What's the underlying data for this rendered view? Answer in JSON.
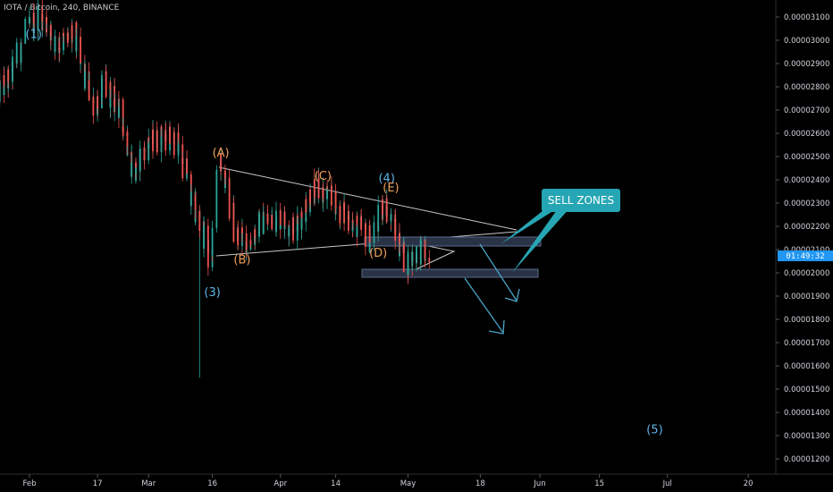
{
  "header": {
    "symbol_line": "IOTA / Bitcoin, 240, BINANCE"
  },
  "price_tag": {
    "time_remaining": "01:49:32",
    "color": "#2196f3"
  },
  "colors": {
    "background": "#000000",
    "candle_up": "#26a69a",
    "candle_down": "#ef5350",
    "wave_orange": "#f0a05a",
    "wave_blue": "#5fb3e8",
    "trendline": "#c8c8c8",
    "zone_fill": "#2a3346",
    "zone_border": "#5a6b8c",
    "callout": "#26a6b4",
    "arrow": "#4aa3c8"
  },
  "chart_data": {
    "type": "candlestick",
    "title": "IOTA / Bitcoin, 240, BINANCE",
    "y_axis": {
      "ticks": [
        "0.00003100",
        "0.00003000",
        "0.00002900",
        "0.00002800",
        "0.00002700",
        "0.00002600",
        "0.00002500",
        "0.00002400",
        "0.00002300",
        "0.00002200",
        "0.00002100",
        "0.00002000",
        "0.00001900",
        "0.00001800",
        "0.00001700",
        "0.00001600",
        "0.00001500",
        "0.00001400",
        "0.00001300",
        "0.00001200"
      ],
      "range": [
        1.18e-05,
        3.12e-05
      ]
    },
    "x_axis": {
      "ticks": [
        {
          "label": "Feb",
          "date": "2019-02-01"
        },
        {
          "label": "17",
          "date": "2019-02-17"
        },
        {
          "label": "Mar",
          "date": "2019-03-01"
        },
        {
          "label": "16",
          "date": "2019-03-16"
        },
        {
          "label": "Apr",
          "date": "2019-04-01"
        },
        {
          "label": "14",
          "date": "2019-04-14"
        },
        {
          "label": "May",
          "date": "2019-05-01"
        },
        {
          "label": "18",
          "date": "2019-05-18"
        },
        {
          "label": "Jun",
          "date": "2019-06-01"
        },
        {
          "label": "15",
          "date": "2019-06-15"
        },
        {
          "label": "Jul",
          "date": "2019-07-01"
        },
        {
          "label": "20",
          "date": "2019-07-20"
        }
      ]
    },
    "price_path": [
      [
        "2019-01-25",
        2.76e-05
      ],
      [
        "2019-01-28",
        2.85e-05
      ],
      [
        "2019-02-01",
        3.05e-05
      ],
      [
        "2019-02-04",
        3.11e-05
      ],
      [
        "2019-02-08",
        2.98e-05
      ],
      [
        "2019-02-12",
        3.02e-05
      ],
      [
        "2019-02-14",
        2.85e-05
      ],
      [
        "2019-02-17",
        2.72e-05
      ],
      [
        "2019-02-19",
        2.81e-05
      ],
      [
        "2019-02-23",
        2.68e-05
      ],
      [
        "2019-02-26",
        2.43e-05
      ],
      [
        "2019-03-01",
        2.55e-05
      ],
      [
        "2019-03-05",
        2.59e-05
      ],
      [
        "2019-03-08",
        2.56e-05
      ],
      [
        "2019-03-10",
        2.45e-05
      ],
      [
        "2019-03-12",
        2.28e-05
      ],
      [
        "2019-03-14",
        2.2e-05
      ],
      [
        "2019-03-16",
        2.05e-05
      ],
      [
        "2019-03-18",
        2.48e-05
      ],
      [
        "2019-03-20",
        2.35e-05
      ],
      [
        "2019-03-22",
        2.16e-05
      ],
      [
        "2019-03-25",
        2.13e-05
      ],
      [
        "2019-03-28",
        2.22e-05
      ],
      [
        "2019-04-01",
        2.24e-05
      ],
      [
        "2019-04-05",
        2.19e-05
      ],
      [
        "2019-04-09",
        2.36e-05
      ],
      [
        "2019-04-12",
        2.34e-05
      ],
      [
        "2019-04-15",
        2.28e-05
      ],
      [
        "2019-04-19",
        2.21e-05
      ],
      [
        "2019-04-23",
        2.14e-05
      ],
      [
        "2019-04-26",
        2.31e-05
      ],
      [
        "2019-04-29",
        2.15e-05
      ],
      [
        "2019-05-01",
        2.04e-05
      ],
      [
        "2019-05-04",
        2.1e-05
      ],
      [
        "2019-05-06",
        2.07e-05
      ]
    ],
    "wick_low": {
      "date": "2019-03-13",
      "price": 1.55e-05
    },
    "current_price": 2.08e-05,
    "annotations": {
      "wave_labels": [
        {
          "text": "(1)",
          "date": "2019-02-02",
          "price": 3.01e-05,
          "color": "blue"
        },
        {
          "text": "(3)",
          "date": "2019-03-16",
          "price": 1.9e-05,
          "color": "blue"
        },
        {
          "text": "(4)",
          "date": "2019-04-26",
          "price": 2.39e-05,
          "color": "blue"
        },
        {
          "text": "(5)",
          "date": "2019-06-28",
          "price": 1.31e-05,
          "color": "blue"
        },
        {
          "text": "(A)",
          "date": "2019-03-18",
          "price": 2.5e-05,
          "color": "orange"
        },
        {
          "text": "(B)",
          "date": "2019-03-23",
          "price": 2.04e-05,
          "color": "orange"
        },
        {
          "text": "(C)",
          "date": "2019-04-11",
          "price": 2.4e-05,
          "color": "orange"
        },
        {
          "text": "(D)",
          "date": "2019-04-24",
          "price": 2.07e-05,
          "color": "orange"
        },
        {
          "text": "(E)",
          "date": "2019-04-27",
          "price": 2.35e-05,
          "color": "orange"
        }
      ],
      "callout": "SELL ZONES"
    }
  }
}
